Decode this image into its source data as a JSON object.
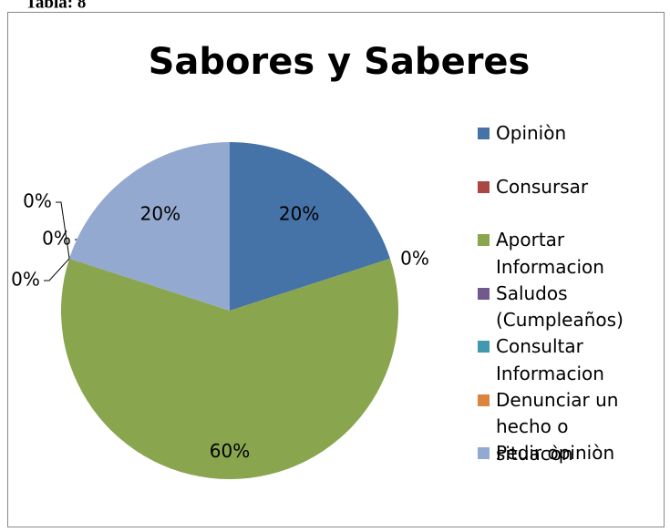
{
  "caption": "Tabla: 8",
  "chart_data": {
    "type": "pie",
    "title": "Sabores y Saberes",
    "categories": [
      "Opiniòn",
      "Consursar",
      "Aportar Informacion",
      "Saludos (Cumpleaños)",
      "Consultar Informacion",
      "Denunciar un hecho o situacòn",
      "Pedir opiniòn"
    ],
    "values": [
      20,
      0,
      60,
      0,
      0,
      0,
      20
    ],
    "value_labels": [
      "20%",
      "0%",
      "60%",
      "0%",
      "0%",
      "0%",
      "20%"
    ],
    "colors": [
      "#4572a7",
      "#aa4643",
      "#89a54e",
      "#71588f",
      "#4198af",
      "#db843d",
      "#93a9cf"
    ],
    "legend": "right"
  }
}
